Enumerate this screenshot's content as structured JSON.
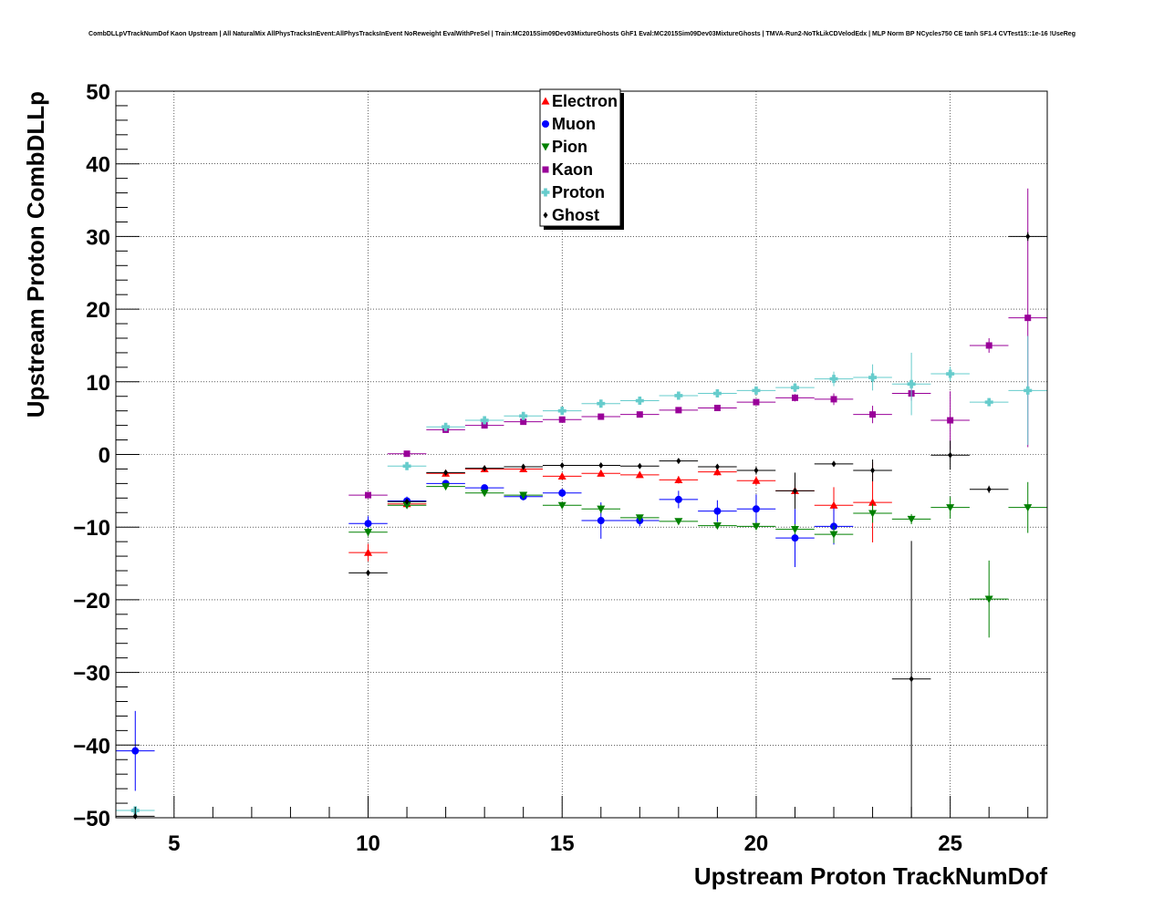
{
  "title": "CombDLLpVTrackNumDof Kaon Upstream | All NaturalMix AllPhysTracksInEvent:AllPhysTracksInEvent NoReweight EvalWithPreSel | Train:MC2015Sim09Dev03MixtureGhosts GhF1 Eval:MC2015Sim09Dev03MixtureGhosts | TMVA-Run2-NoTkLikCDVelodEdx | MLP Norm BP NCycles750 CE tanh SF1.4 CVTest15::1e-16 !UseReg",
  "chart_data": {
    "type": "scatter",
    "xlabel": "Upstream Proton TrackNumDof",
    "ylabel": "Upstream Proton CombDLLp",
    "xlim": [
      3.5,
      27.5
    ],
    "ylim": [
      -50,
      50
    ],
    "xticks": [
      5,
      10,
      15,
      20,
      25
    ],
    "xtick_labels": [
      "5",
      "10",
      "15",
      "20",
      "25"
    ],
    "yticks": [
      -50,
      -40,
      -30,
      -20,
      -10,
      0,
      10,
      20,
      30,
      40,
      50
    ],
    "ytick_labels": [
      "−50",
      "−40",
      "−30",
      "−20",
      "−10",
      "0",
      "10",
      "20",
      "30",
      "40",
      "50"
    ],
    "grid": true,
    "legend_position": "top-center",
    "series": [
      {
        "name": "Electron",
        "color": "#ff0000",
        "marker": "triangle-up",
        "points": [
          {
            "x": 10,
            "y": -13.5,
            "err": 1.2
          },
          {
            "x": 11,
            "y": -6.8,
            "err": 0.5
          },
          {
            "x": 12,
            "y": -2.6,
            "err": 0.3
          },
          {
            "x": 13,
            "y": -2.0,
            "err": 0.3
          },
          {
            "x": 14,
            "y": -2.0,
            "err": 0.3
          },
          {
            "x": 15,
            "y": -3.0,
            "err": 0.3
          },
          {
            "x": 16,
            "y": -2.6,
            "err": 0.3
          },
          {
            "x": 17,
            "y": -2.8,
            "err": 0.4
          },
          {
            "x": 18,
            "y": -3.5,
            "err": 0.5
          },
          {
            "x": 19,
            "y": -2.4,
            "err": 0.5
          },
          {
            "x": 20,
            "y": -3.6,
            "err": 0.6
          },
          {
            "x": 21,
            "y": -5.0,
            "err": 1.0
          },
          {
            "x": 22,
            "y": -7.0,
            "err": 2.5
          },
          {
            "x": 23,
            "y": -6.6,
            "err": 5.5
          }
        ]
      },
      {
        "name": "Muon",
        "color": "#0000ff",
        "marker": "circle",
        "points": [
          {
            "x": 4,
            "y": -40.8,
            "err": 5.5
          },
          {
            "x": 10,
            "y": -9.5,
            "err": 1.0
          },
          {
            "x": 11,
            "y": -6.4,
            "err": 0.6
          },
          {
            "x": 12,
            "y": -4.0,
            "err": 0.4
          },
          {
            "x": 13,
            "y": -4.6,
            "err": 0.4
          },
          {
            "x": 14,
            "y": -5.8,
            "err": 0.5
          },
          {
            "x": 15,
            "y": -5.3,
            "err": 0.6
          },
          {
            "x": 16,
            "y": -9.1,
            "err": 2.5
          },
          {
            "x": 17,
            "y": -9.1,
            "err": 0.8
          },
          {
            "x": 18,
            "y": -6.2,
            "err": 1.2
          },
          {
            "x": 19,
            "y": -7.8,
            "err": 1.5
          },
          {
            "x": 20,
            "y": -7.5,
            "err": 2.0
          },
          {
            "x": 21,
            "y": -11.5,
            "err": 4.0
          },
          {
            "x": 22,
            "y": -9.9,
            "err": 2.5
          }
        ]
      },
      {
        "name": "Pion",
        "color": "#008000",
        "marker": "triangle-down",
        "points": [
          {
            "x": 10,
            "y": -10.7,
            "err": 0.6
          },
          {
            "x": 11,
            "y": -7.0,
            "err": 0.3
          },
          {
            "x": 12,
            "y": -4.4,
            "err": 0.2
          },
          {
            "x": 13,
            "y": -5.3,
            "err": 0.2
          },
          {
            "x": 14,
            "y": -5.6,
            "err": 0.2
          },
          {
            "x": 15,
            "y": -7.0,
            "err": 0.3
          },
          {
            "x": 16,
            "y": -7.5,
            "err": 0.6
          },
          {
            "x": 17,
            "y": -8.7,
            "err": 0.4
          },
          {
            "x": 18,
            "y": -9.2,
            "err": 0.4
          },
          {
            "x": 19,
            "y": -9.8,
            "err": 0.4
          },
          {
            "x": 20,
            "y": -9.9,
            "err": 0.5
          },
          {
            "x": 21,
            "y": -10.3,
            "err": 0.7
          },
          {
            "x": 22,
            "y": -11.0,
            "err": 1.2
          },
          {
            "x": 23,
            "y": -8.1,
            "err": 1.3
          },
          {
            "x": 24,
            "y": -8.9,
            "err": 0.7
          },
          {
            "x": 25,
            "y": -7.3,
            "err": 1.5
          },
          {
            "x": 26,
            "y": -19.9,
            "err": 5.3
          },
          {
            "x": 27,
            "y": -7.3,
            "err": 3.5
          }
        ]
      },
      {
        "name": "Kaon",
        "color": "#990099",
        "marker": "square",
        "points": [
          {
            "x": 10,
            "y": -5.6,
            "err": 0.3
          },
          {
            "x": 11,
            "y": 0.1,
            "err": 0.2
          },
          {
            "x": 12,
            "y": 3.4,
            "err": 0.2
          },
          {
            "x": 13,
            "y": 4.0,
            "err": 0.2
          },
          {
            "x": 14,
            "y": 4.5,
            "err": 0.2
          },
          {
            "x": 15,
            "y": 4.8,
            "err": 0.2
          },
          {
            "x": 16,
            "y": 5.2,
            "err": 0.2
          },
          {
            "x": 17,
            "y": 5.5,
            "err": 0.2
          },
          {
            "x": 18,
            "y": 6.1,
            "err": 0.3
          },
          {
            "x": 19,
            "y": 6.4,
            "err": 0.3
          },
          {
            "x": 20,
            "y": 7.2,
            "err": 0.4
          },
          {
            "x": 21,
            "y": 7.8,
            "err": 0.5
          },
          {
            "x": 22,
            "y": 7.6,
            "err": 0.8
          },
          {
            "x": 23,
            "y": 5.5,
            "err": 1.2
          },
          {
            "x": 24,
            "y": 8.4,
            "err": 1.0
          },
          {
            "x": 25,
            "y": 4.7,
            "err": 4.0
          },
          {
            "x": 26,
            "y": 15.0,
            "err": 1.0
          },
          {
            "x": 27,
            "y": 18.8,
            "err": 17.8
          }
        ]
      },
      {
        "name": "Proton",
        "color": "#66cccc",
        "marker": "cross",
        "points": [
          {
            "x": 4,
            "y": -49.0,
            "err": 0.4
          },
          {
            "x": 11,
            "y": -1.6,
            "err": 0.3
          },
          {
            "x": 12,
            "y": 3.8,
            "err": 0.2
          },
          {
            "x": 13,
            "y": 4.7,
            "err": 0.2
          },
          {
            "x": 14,
            "y": 5.3,
            "err": 0.2
          },
          {
            "x": 15,
            "y": 6.0,
            "err": 0.2
          },
          {
            "x": 16,
            "y": 7.0,
            "err": 0.3
          },
          {
            "x": 17,
            "y": 7.4,
            "err": 0.3
          },
          {
            "x": 18,
            "y": 8.1,
            "err": 0.3
          },
          {
            "x": 19,
            "y": 8.4,
            "err": 0.3
          },
          {
            "x": 20,
            "y": 8.8,
            "err": 0.4
          },
          {
            "x": 21,
            "y": 9.2,
            "err": 0.6
          },
          {
            "x": 22,
            "y": 10.4,
            "err": 1.0
          },
          {
            "x": 23,
            "y": 10.6,
            "err": 1.8
          },
          {
            "x": 24,
            "y": 9.7,
            "err": 4.3
          },
          {
            "x": 25,
            "y": 11.1,
            "err": 1.0
          },
          {
            "x": 26,
            "y": 7.2,
            "err": 0.5
          },
          {
            "x": 27,
            "y": 8.8,
            "err": 7.5
          }
        ]
      },
      {
        "name": "Ghost",
        "color": "#000000",
        "marker": "diamond",
        "points": [
          {
            "x": 4,
            "y": -49.8,
            "err": 0.4
          },
          {
            "x": 10,
            "y": -16.3,
            "err": 0.4
          },
          {
            "x": 11,
            "y": -6.5,
            "err": 0.3
          },
          {
            "x": 12,
            "y": -2.5,
            "err": 0.2
          },
          {
            "x": 13,
            "y": -1.9,
            "err": 0.2
          },
          {
            "x": 14,
            "y": -1.7,
            "err": 0.2
          },
          {
            "x": 15,
            "y": -1.5,
            "err": 0.2
          },
          {
            "x": 16,
            "y": -1.5,
            "err": 0.2
          },
          {
            "x": 17,
            "y": -1.6,
            "err": 0.2
          },
          {
            "x": 18,
            "y": -0.9,
            "err": 0.3
          },
          {
            "x": 19,
            "y": -1.7,
            "err": 0.3
          },
          {
            "x": 20,
            "y": -2.2,
            "err": 0.5
          },
          {
            "x": 21,
            "y": -5.0,
            "err": 2.5
          },
          {
            "x": 22,
            "y": -1.3,
            "err": 0.4
          },
          {
            "x": 23,
            "y": -2.2,
            "err": 1.5
          },
          {
            "x": 24,
            "y": -30.9,
            "err": 19.0
          },
          {
            "x": 25,
            "y": -0.1,
            "err": 2.0
          },
          {
            "x": 26,
            "y": -4.8,
            "err": 0.5
          },
          {
            "x": 27,
            "y": 30.0,
            "err": 0.6
          }
        ]
      }
    ]
  }
}
